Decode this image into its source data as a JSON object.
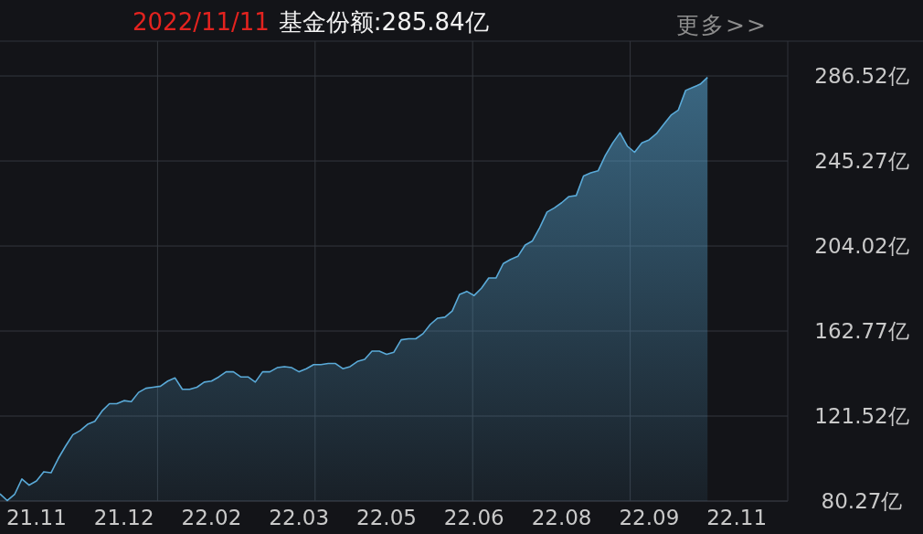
{
  "chart_data": {
    "type": "area",
    "title": "2022/11/11",
    "subtitle": "基金份额:285.84亿",
    "annotations": [
      "更多>>"
    ],
    "color": "#5aaad8",
    "categories": [
      null,
      null,
      null,
      null,
      null,
      "21.11",
      null,
      null,
      null,
      null,
      null,
      null,
      null,
      null,
      null,
      null,
      null,
      "21.12",
      null,
      null,
      null,
      null,
      null,
      null,
      null,
      null,
      null,
      null,
      null,
      "22.02",
      null,
      null,
      null,
      null,
      null,
      null,
      null,
      null,
      null,
      null,
      null,
      "22.03",
      null,
      null,
      null,
      null,
      null,
      null,
      null,
      null,
      null,
      null,
      null,
      "22.05",
      null,
      null,
      null,
      null,
      null,
      null,
      null,
      null,
      null,
      null,
      null,
      "22.06",
      null,
      null,
      null,
      null,
      null,
      null,
      null,
      null,
      null,
      null,
      null,
      "22.08",
      null,
      null,
      null,
      null,
      null,
      null,
      null,
      null,
      null,
      null,
      null,
      "22.09",
      null,
      null,
      null,
      null,
      null,
      null,
      null,
      null,
      null,
      null,
      null,
      "22.11",
      null,
      null,
      null,
      null,
      null,
      null,
      null
    ],
    "values": [
      83.8,
      80.5,
      83.5,
      91,
      88,
      90,
      94.5,
      94,
      101,
      107,
      112.5,
      114.5,
      117.5,
      119,
      124,
      127.5,
      127.5,
      129,
      128.5,
      133,
      135,
      135.5,
      136,
      138.5,
      140,
      134.5,
      134.5,
      135.5,
      138,
      138.5,
      140.5,
      143,
      143,
      140.5,
      140.5,
      138,
      143,
      143,
      145,
      145.5,
      145,
      143,
      144.5,
      146.5,
      146.5,
      147,
      147,
      144.5,
      145.5,
      148,
      149,
      153,
      153,
      151.5,
      152.5,
      158.5,
      159,
      159,
      161.5,
      166,
      169,
      169.5,
      172.5,
      180.5,
      182,
      180,
      183.5,
      188.5,
      188.5,
      195.5,
      197.5,
      199,
      204.5,
      206.5,
      213,
      220.5,
      222.5,
      225,
      228,
      228.5,
      238,
      239.5,
      240.5,
      248,
      254,
      259,
      252.5,
      249.5,
      254,
      255.5,
      258.5,
      263,
      267.5,
      270,
      279.5,
      281,
      282.5,
      285.84,
      null,
      null,
      null,
      null,
      null,
      null,
      null,
      null,
      null,
      null,
      null
    ],
    "ylim": [
      80.27,
      303.4
    ],
    "yticks": [
      {
        "value": 80.27,
        "label": "80.27亿"
      },
      {
        "value": 121.52,
        "label": "121.52亿"
      },
      {
        "value": 162.77,
        "label": "162.77亿"
      },
      {
        "value": 204.02,
        "label": "204.02亿"
      },
      {
        "value": 245.27,
        "label": "245.27亿"
      },
      {
        "value": 286.52,
        "label": "286.52亿"
      }
    ],
    "grid": true
  }
}
